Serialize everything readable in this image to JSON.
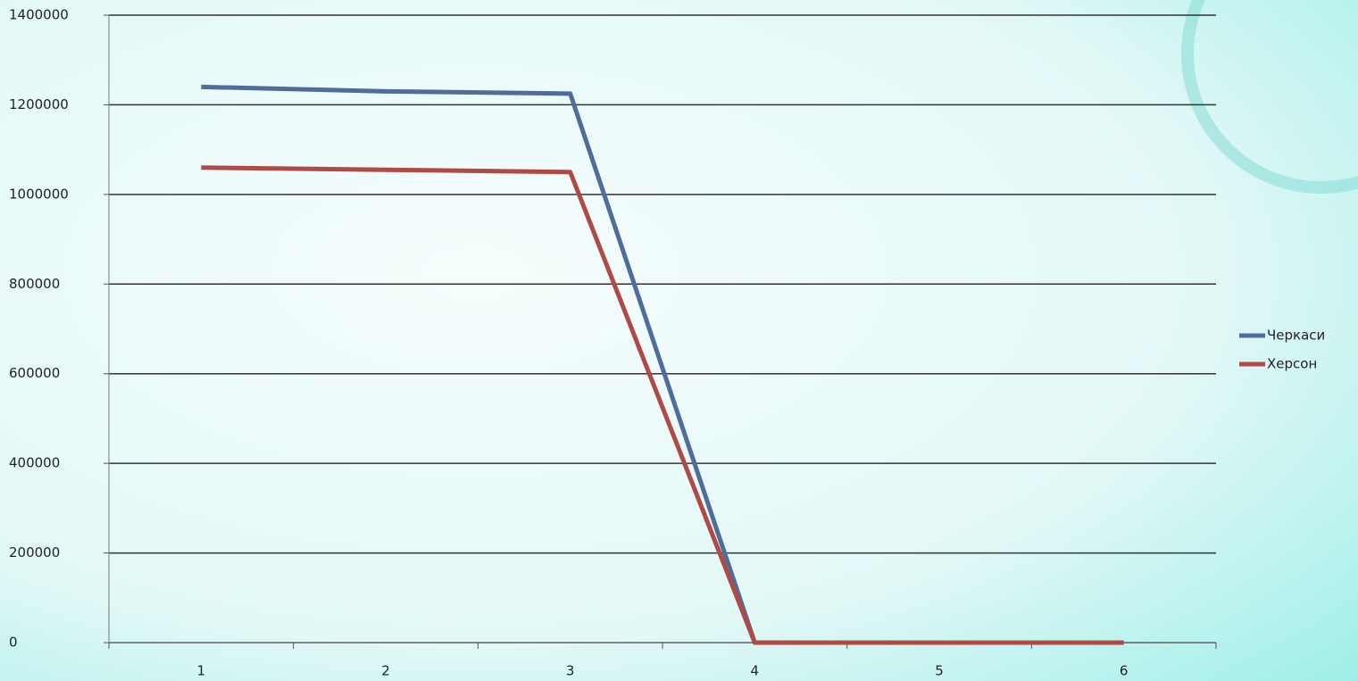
{
  "chart_data": {
    "type": "line",
    "categories": [
      "1",
      "2",
      "3",
      "4",
      "5",
      "6"
    ],
    "series": [
      {
        "name": "Черкаси",
        "color": "#4f6d9a",
        "values": [
          1240000,
          1230000,
          1225000,
          0,
          0,
          0
        ]
      },
      {
        "name": "Херсон",
        "color": "#b04a45",
        "values": [
          1060000,
          1055000,
          1050000,
          0,
          0,
          0
        ]
      }
    ],
    "ylim": [
      0,
      1400000
    ],
    "yticks": [
      0,
      200000,
      400000,
      600000,
      800000,
      1000000,
      1200000,
      1400000
    ],
    "grid": true,
    "legend": "right"
  }
}
